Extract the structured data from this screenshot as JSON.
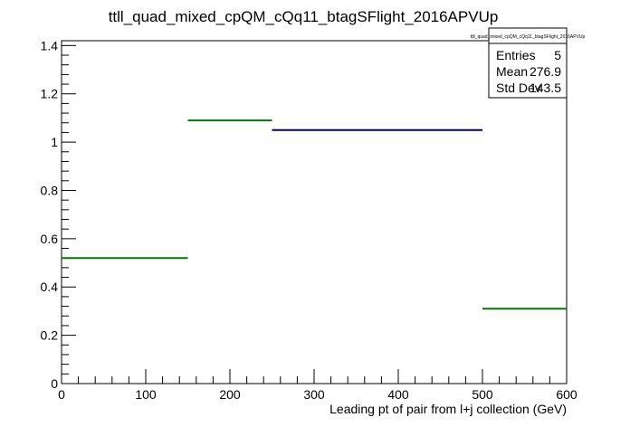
{
  "chart_data": {
    "type": "histogram",
    "title": "ttll_quad_mixed_cpQM_cQq11_btagSFlight_2016APVUp",
    "xlabel": "Leading pt of pair from l+j collection (GeV)",
    "ylabel": "",
    "xlim": [
      0,
      600
    ],
    "ylim": [
      0,
      1.42
    ],
    "x_ticks": [
      0,
      100,
      200,
      300,
      400,
      500,
      600
    ],
    "x_tick_labels": [
      "0",
      "100",
      "200",
      "300",
      "400",
      "500",
      "600"
    ],
    "y_ticks": [
      0,
      0.2,
      0.4,
      0.6,
      0.8,
      1,
      1.2,
      1.4
    ],
    "y_tick_labels": [
      "0",
      "0.2",
      "0.4",
      "0.6",
      "0.8",
      "1",
      "1.2",
      "1.4"
    ],
    "bins": [
      {
        "x_low": 0,
        "x_high": 150,
        "value": 0.52,
        "color": "#007a00"
      },
      {
        "x_low": 150,
        "x_high": 250,
        "value": 1.09,
        "color": "#007a00"
      },
      {
        "x_low": 250,
        "x_high": 500,
        "value": 1.05,
        "color": "#00007a"
      },
      {
        "x_low": 500,
        "x_high": 600,
        "value": 0.31,
        "color": "#007a00"
      }
    ],
    "stats_box": {
      "title": "ttll_quad_mixed_cpQM_cQq11_btagSFlight_2016APVUp",
      "rows": [
        {
          "label": "Entries",
          "value": "5"
        },
        {
          "label": "Mean",
          "value": "276.9"
        },
        {
          "label": "Std Dev",
          "value": "143.5"
        }
      ]
    }
  }
}
